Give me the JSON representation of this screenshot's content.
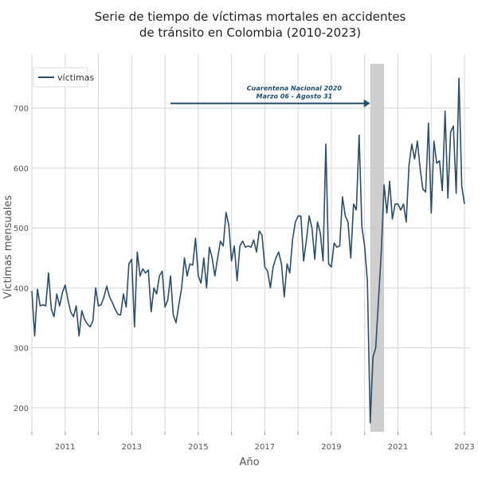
{
  "chart_data": {
    "type": "line",
    "title_lines": [
      "Serie de tiempo de víctimas mortales en accidentes",
      "de tránsito en Colombia (2010-2023)"
    ],
    "xlabel": "Año",
    "ylabel": "Víctimas mensuales",
    "x_ticks": [
      "2011",
      "2013",
      "2015",
      "2017",
      "2019",
      "2021",
      "2023"
    ],
    "y_ticks": [
      "200",
      "300",
      "400",
      "500",
      "600",
      "700"
    ],
    "xlim": [
      "2010-01",
      "2023-03"
    ],
    "ylim": [
      160,
      790
    ],
    "grid": true,
    "legend": {
      "position": "top-left",
      "entries": [
        "víctimas"
      ]
    },
    "colors": {
      "series": "#2a4d69",
      "band": "#c9c9c9",
      "annotation": "#1f4e6e"
    },
    "annotation": {
      "line1": "Cuarentena Nacional 2020",
      "line2": "Marzo 06 - Agosto 31",
      "arrow_from": "2014-03",
      "arrow_to": "2020-03",
      "arrow_y": 700,
      "band_from": "2020-03",
      "band_to": "2020-08"
    },
    "series": [
      {
        "name": "víctimas",
        "start": "2010-01",
        "values": [
          395,
          320,
          398,
          370,
          372,
          370,
          425,
          365,
          352,
          390,
          370,
          392,
          405,
          380,
          360,
          352,
          370,
          320,
          362,
          348,
          340,
          335,
          345,
          400,
          370,
          372,
          385,
          403,
          385,
          376,
          365,
          356,
          355,
          390,
          368,
          440,
          448,
          335,
          460,
          420,
          432,
          425,
          430,
          360,
          400,
          390,
          420,
          428,
          368,
          380,
          420,
          355,
          342,
          372,
          400,
          450,
          420,
          440,
          438,
          483,
          420,
          408,
          450,
          400,
          468,
          450,
          420,
          450,
          478,
          470,
          526,
          505,
          445,
          470,
          412,
          470,
          478,
          468,
          470,
          468,
          480,
          460,
          495,
          488,
          435,
          428,
          400,
          435,
          450,
          460,
          440,
          385,
          440,
          425,
          480,
          510,
          520,
          520,
          445,
          480,
          520,
          500,
          448,
          510,
          492,
          445,
          640,
          440,
          435,
          475,
          468,
          470,
          552,
          520,
          510,
          450,
          540,
          530,
          655,
          502,
          470,
          410,
          175,
          285,
          300,
          380,
          460,
          572,
          525,
          578,
          515,
          540,
          540,
          530,
          540,
          510,
          605,
          640,
          615,
          645,
          600,
          565,
          560,
          675,
          525,
          645,
          608,
          612,
          562,
          695,
          550,
          660,
          670,
          558,
          750,
          570,
          540
        ]
      }
    ]
  }
}
